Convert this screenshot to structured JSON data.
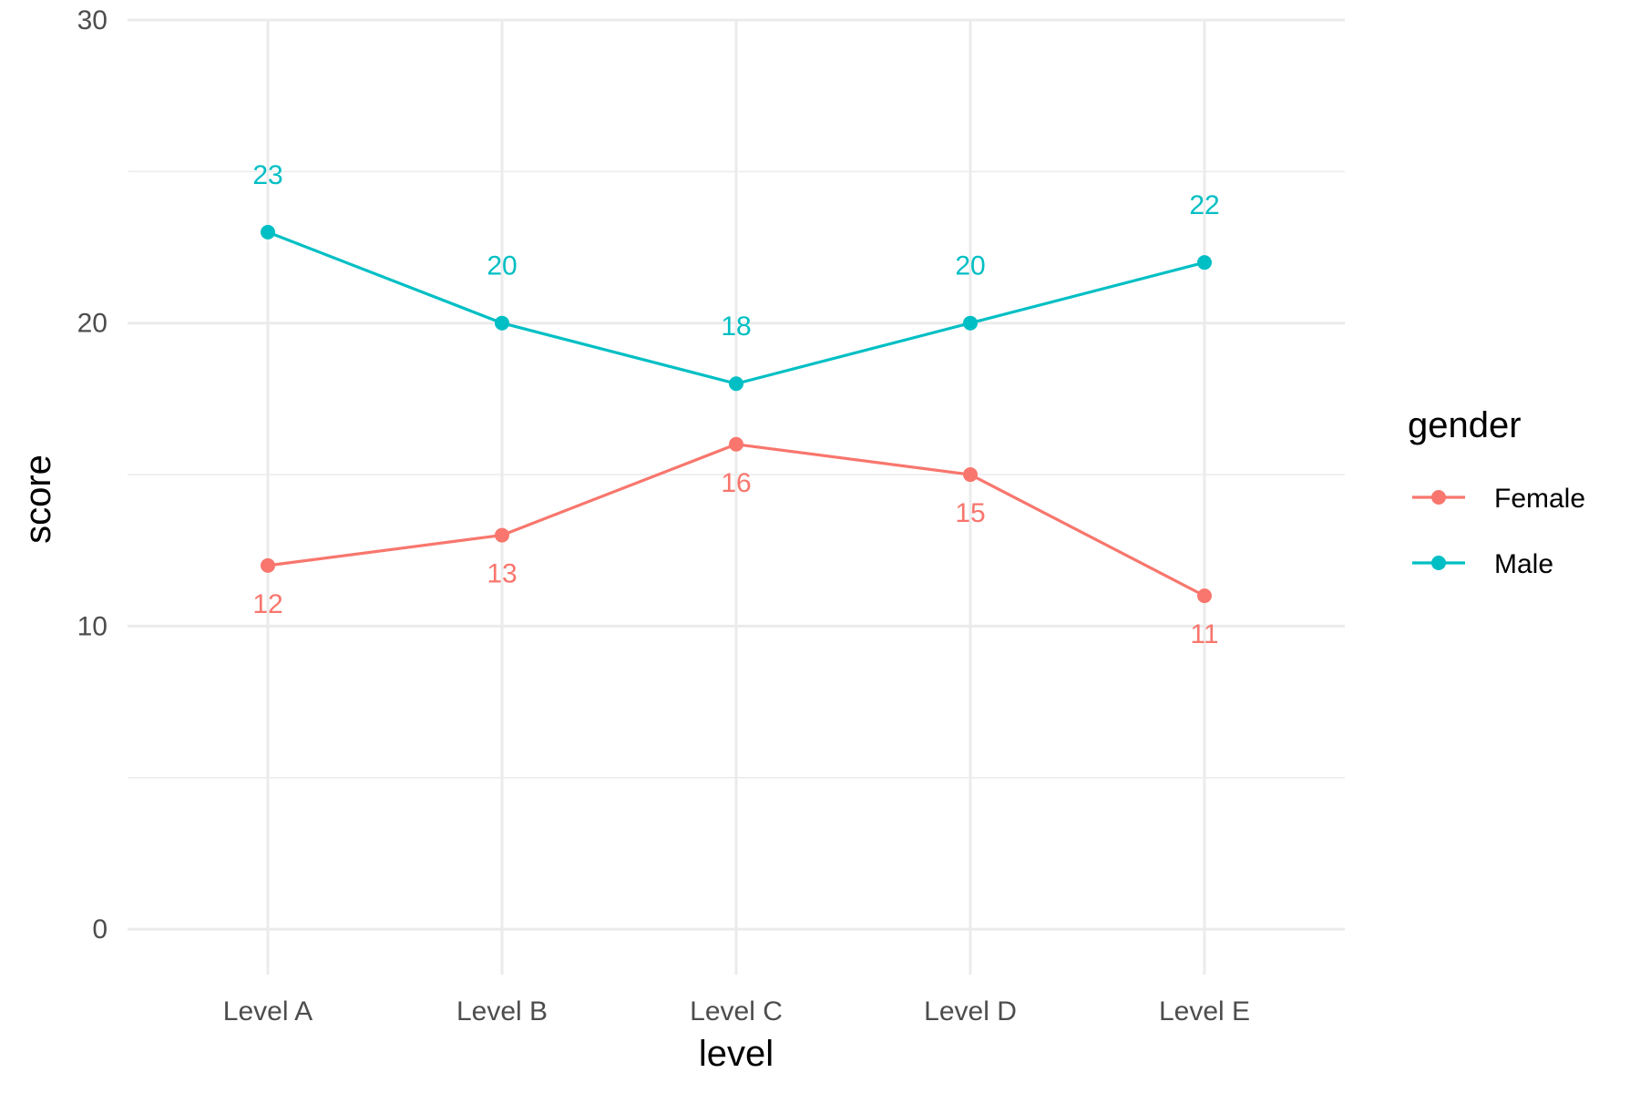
{
  "chart_data": {
    "type": "line",
    "title": "",
    "xlabel": "level",
    "ylabel": "score",
    "categories": [
      "Level A",
      "Level B",
      "Level C",
      "Level D",
      "Level E"
    ],
    "ylim": [
      -1.5,
      30
    ],
    "yticks": [
      0,
      10,
      20,
      30
    ],
    "y_minor_ticks": [
      5,
      15,
      25
    ],
    "grid": true,
    "legend": {
      "title": "gender",
      "position": "right"
    },
    "series": [
      {
        "name": "Female",
        "color": "#F8766D",
        "values": [
          12,
          13,
          16,
          15,
          11
        ],
        "label_position": "below"
      },
      {
        "name": "Male",
        "color": "#00BFC4",
        "values": [
          23,
          20,
          18,
          20,
          22
        ],
        "label_position": "above"
      }
    ]
  }
}
